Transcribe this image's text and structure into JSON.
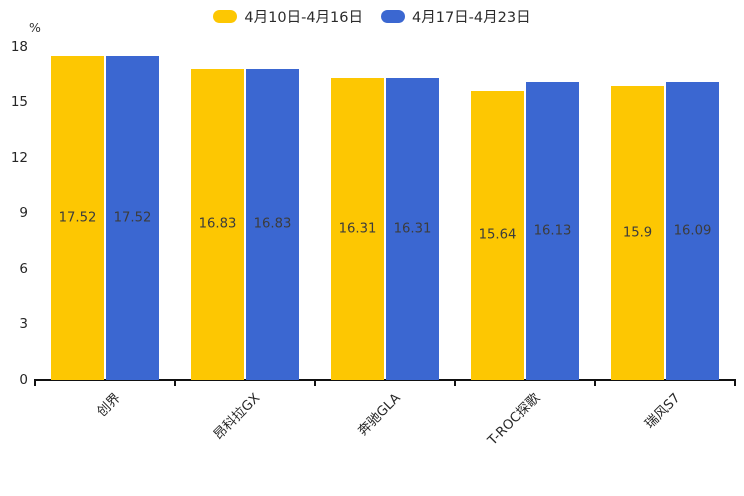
{
  "chart_data": {
    "type": "bar",
    "title": "",
    "categories": [
      "创界",
      "昂科拉GX",
      "奔驰GLA",
      "T-ROC探歌",
      "瑞风S7"
    ],
    "series": [
      {
        "name": "4月10日-4月16日",
        "color": "#FDC702",
        "values": [
          17.52,
          16.83,
          16.31,
          15.64,
          15.9
        ]
      },
      {
        "name": "4月17日-4月23日",
        "color": "#3B67D1",
        "values": [
          17.52,
          16.83,
          16.31,
          16.13,
          16.09
        ]
      }
    ],
    "xlabel": "",
    "ylabel": "%",
    "ylim": [
      0,
      18
    ],
    "ytick_step": 3,
    "yticks": [
      0,
      3,
      6,
      9,
      12,
      15,
      18
    ],
    "grid": false,
    "legend_position": "top-center",
    "value_labels": "inside-center",
    "category_label_rotation_deg": 45
  },
  "colors": {
    "axis": "#111111",
    "tick_text": "#262626",
    "value_text": "#3c3c3c",
    "background": "#ffffff"
  }
}
